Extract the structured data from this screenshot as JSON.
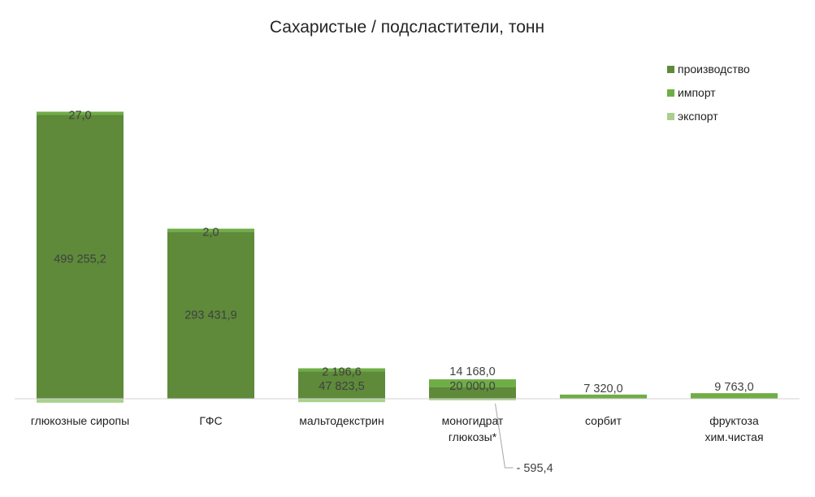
{
  "chart_data": {
    "type": "bar",
    "stacked": true,
    "title": "Сахаристые / подсластители, тонн",
    "xlabel": "",
    "ylabel": "",
    "ylim": [
      -8000,
      500000
    ],
    "grid": false,
    "legend_position": "top-right",
    "categories": [
      [
        "глюкозные сиропы"
      ],
      [
        "ГФС"
      ],
      [
        "мальтодекстрин"
      ],
      [
        "моногидрат",
        "глюкозы*"
      ],
      [
        "сорбит"
      ],
      [
        "фруктоза",
        "хим.чистая"
      ]
    ],
    "series": [
      {
        "name": "производство",
        "color": "#5E8A3A",
        "values": [
          499255.2,
          293431.9,
          47823.5,
          20000.0,
          null,
          null
        ],
        "labels": [
          "499 255,2",
          "293 431,9",
          "47 823,5",
          "20 000,0",
          "",
          ""
        ]
      },
      {
        "name": "импорт",
        "color": "#70AD47",
        "values": [
          27.0,
          2.0,
          2196.6,
          14168.0,
          7320.0,
          9763.0
        ],
        "labels": [
          "27,0",
          "2,0",
          "2 196,6",
          "14 168,0",
          "7 320,0",
          "9 763,0"
        ]
      },
      {
        "name": "экспорт",
        "color": "#A9D18E",
        "values": [
          -7000,
          null,
          -6000,
          -595.4,
          null,
          null
        ],
        "labels": [
          "",
          "",
          "",
          "- 595,4",
          "",
          ""
        ]
      }
    ]
  }
}
